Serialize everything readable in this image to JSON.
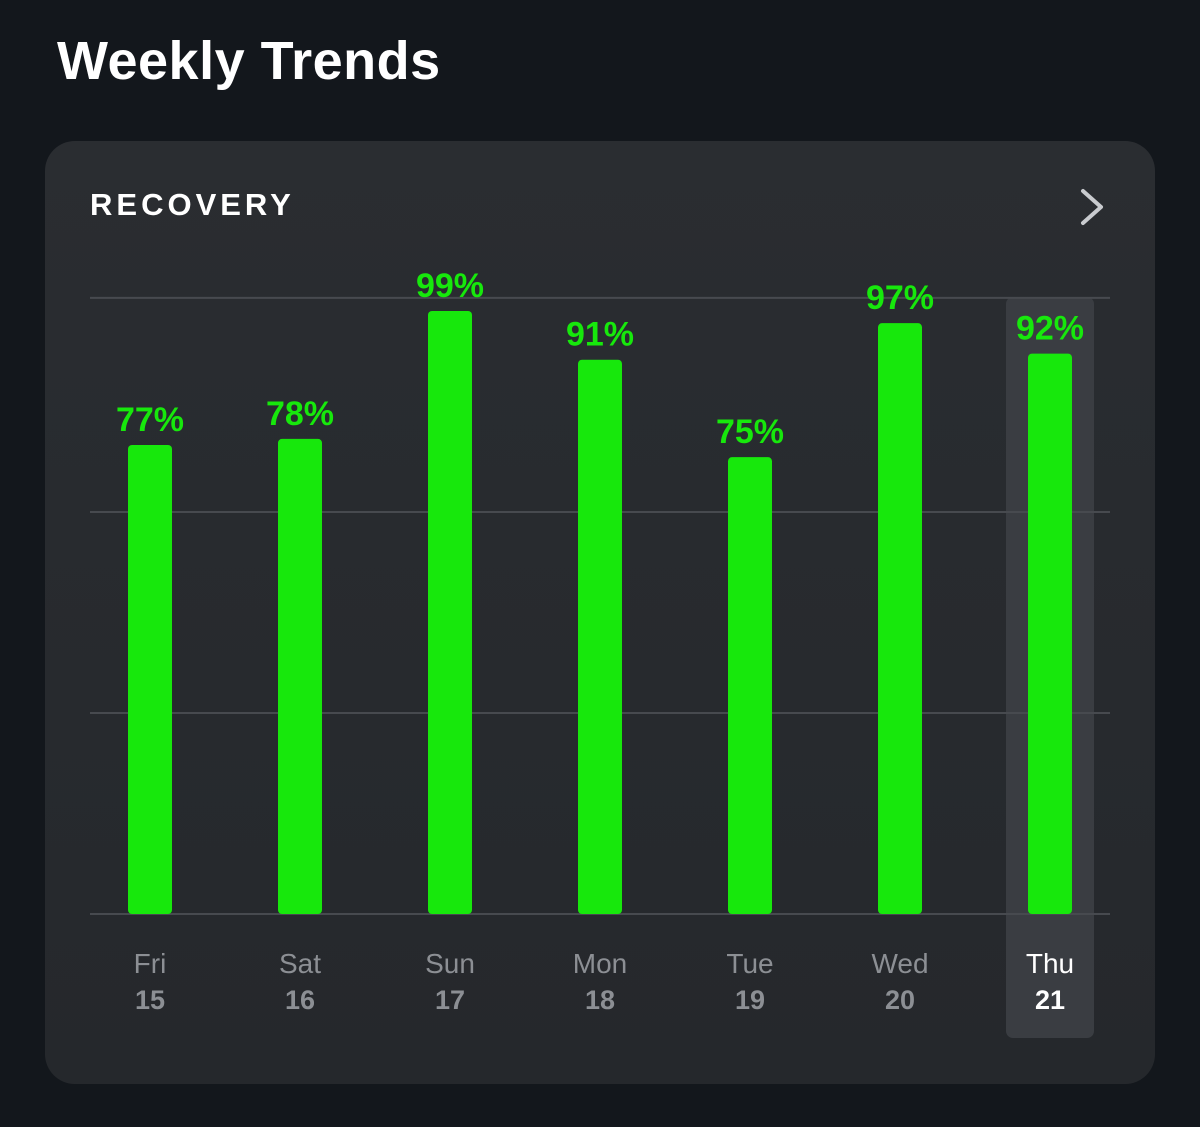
{
  "header": {
    "title": "Weekly Trends"
  },
  "card": {
    "label": "RECOVERY",
    "chevron_icon": "chevron-right-icon"
  },
  "colors": {
    "background": "#13171c",
    "card": "#2a2d31",
    "bar": "#17e80c",
    "label_text": "#17e80c",
    "day_text": "#8c8f94",
    "selected_day_text": "#ffffff",
    "selected_highlight": "#3a3d42",
    "gridline": "#474a4f"
  },
  "chart_data": {
    "type": "bar",
    "title": "RECOVERY",
    "categories": [
      "Fri",
      "Sat",
      "Sun",
      "Mon",
      "Tue",
      "Wed",
      "Thu"
    ],
    "dates": [
      "15",
      "16",
      "17",
      "18",
      "19",
      "20",
      "21"
    ],
    "values": [
      77,
      78,
      99,
      91,
      75,
      97,
      92
    ],
    "value_labels": [
      "77%",
      "78%",
      "99%",
      "91%",
      "75%",
      "97%",
      "92%"
    ],
    "selected": "Thu",
    "ylim": [
      0,
      100
    ],
    "grid": true
  }
}
